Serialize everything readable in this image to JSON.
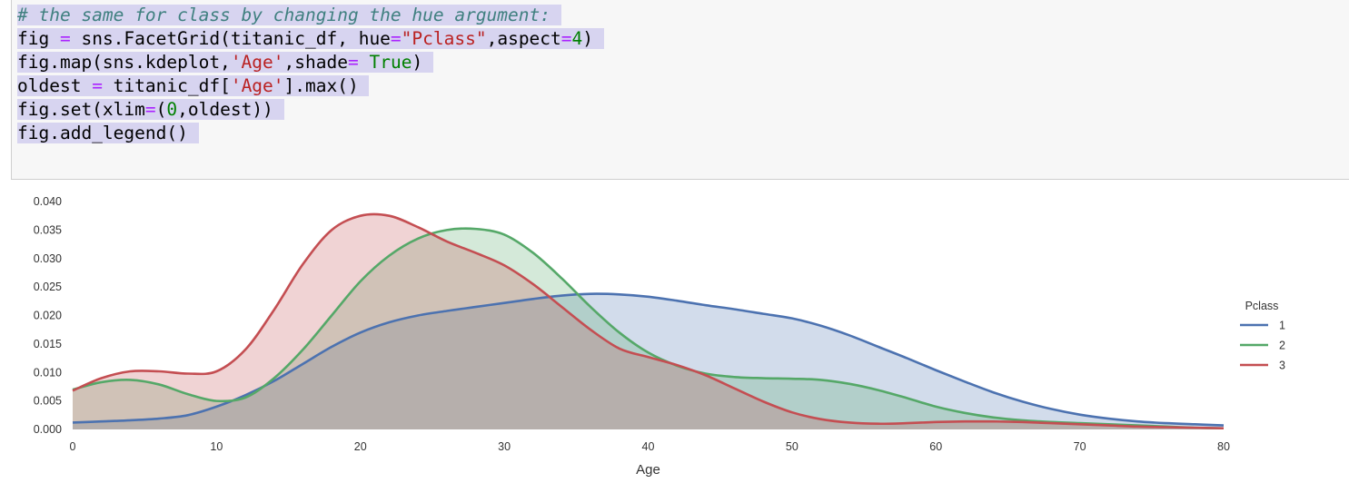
{
  "code_lines": [
    [
      {
        "t": "# the same for class by changing the hue argument:",
        "c": "cm"
      }
    ],
    [
      {
        "t": "fig ",
        "c": ""
      },
      {
        "t": "=",
        "c": "o"
      },
      {
        "t": " sns.FacetGrid(titanic_df, hue",
        "c": ""
      },
      {
        "t": "=",
        "c": "o"
      },
      {
        "t": "\"Pclass\"",
        "c": "s"
      },
      {
        "t": ",aspect",
        "c": ""
      },
      {
        "t": "=",
        "c": "o"
      },
      {
        "t": "4",
        "c": "nm"
      },
      {
        "t": ")",
        "c": ""
      }
    ],
    [
      {
        "t": "fig.map(sns.kdeplot,",
        "c": ""
      },
      {
        "t": "'Age'",
        "c": "s"
      },
      {
        "t": ",shade",
        "c": ""
      },
      {
        "t": "=",
        "c": "o"
      },
      {
        "t": " ",
        "c": ""
      },
      {
        "t": "True",
        "c": "k"
      },
      {
        "t": ")",
        "c": ""
      }
    ],
    [
      {
        "t": "oldest ",
        "c": ""
      },
      {
        "t": "=",
        "c": "o"
      },
      {
        "t": " titanic_df[",
        "c": ""
      },
      {
        "t": "'Age'",
        "c": "s"
      },
      {
        "t": "].max()",
        "c": ""
      }
    ],
    [
      {
        "t": "fig.set(xlim",
        "c": ""
      },
      {
        "t": "=",
        "c": "o"
      },
      {
        "t": "(",
        "c": ""
      },
      {
        "t": "0",
        "c": "nm"
      },
      {
        "t": ",oldest))",
        "c": ""
      }
    ],
    [
      {
        "t": "fig.add_legend()",
        "c": ""
      }
    ]
  ],
  "chart_data": {
    "type": "area",
    "title": "",
    "xlabel": "Age",
    "ylabel": "",
    "xlim": [
      0,
      80
    ],
    "ylim": [
      0,
      0.04
    ],
    "x_ticks": [
      "0",
      "10",
      "20",
      "30",
      "40",
      "50",
      "60",
      "70",
      "80"
    ],
    "y_ticks": [
      "0.000",
      "0.005",
      "0.010",
      "0.015",
      "0.020",
      "0.025",
      "0.030",
      "0.035",
      "0.040"
    ],
    "grid": false,
    "legend": {
      "title": "Pclass",
      "placement": "right"
    },
    "x": [
      0,
      2,
      4,
      6,
      8,
      10,
      12,
      14,
      16,
      18,
      20,
      22,
      24,
      26,
      28,
      30,
      32,
      34,
      36,
      38,
      40,
      42,
      44,
      46,
      48,
      50,
      52,
      54,
      56,
      58,
      60,
      62,
      64,
      66,
      68,
      70,
      72,
      74,
      76,
      78,
      80
    ],
    "series": [
      {
        "name": "1",
        "color": "#4c72b0",
        "values": [
          0.0012,
          0.0014,
          0.0016,
          0.0019,
          0.0025,
          0.004,
          0.006,
          0.0085,
          0.0115,
          0.0145,
          0.017,
          0.0188,
          0.02,
          0.0208,
          0.0215,
          0.0222,
          0.0229,
          0.0235,
          0.0238,
          0.0237,
          0.0233,
          0.0226,
          0.0218,
          0.0211,
          0.0203,
          0.0195,
          0.0182,
          0.0165,
          0.0145,
          0.0125,
          0.0104,
          0.0084,
          0.0065,
          0.0049,
          0.0036,
          0.0026,
          0.0019,
          0.0014,
          0.0011,
          0.0009,
          0.0007
        ]
      },
      {
        "name": "2",
        "color": "#55a868",
        "values": [
          0.007,
          0.0083,
          0.0087,
          0.0079,
          0.0062,
          0.005,
          0.0056,
          0.009,
          0.014,
          0.02,
          0.026,
          0.0305,
          0.0335,
          0.035,
          0.0352,
          0.0342,
          0.031,
          0.0265,
          0.0215,
          0.017,
          0.0135,
          0.0112,
          0.0098,
          0.0092,
          0.009,
          0.0089,
          0.0087,
          0.008,
          0.0069,
          0.0055,
          0.004,
          0.0029,
          0.0021,
          0.0016,
          0.0013,
          0.0011,
          0.0009,
          0.0007,
          0.0005,
          0.0003,
          0.0002
        ]
      },
      {
        "name": "3",
        "color": "#c44e52",
        "values": [
          0.0068,
          0.009,
          0.0102,
          0.0102,
          0.0098,
          0.0102,
          0.014,
          0.021,
          0.029,
          0.035,
          0.0375,
          0.0375,
          0.0355,
          0.033,
          0.031,
          0.0288,
          0.0255,
          0.0215,
          0.0175,
          0.0142,
          0.0127,
          0.0113,
          0.0095,
          0.0072,
          0.0049,
          0.003,
          0.0018,
          0.0012,
          0.001,
          0.0011,
          0.0013,
          0.0014,
          0.0014,
          0.0013,
          0.0011,
          0.0009,
          0.0007,
          0.0005,
          0.0004,
          0.0003,
          0.0002
        ]
      }
    ]
  }
}
